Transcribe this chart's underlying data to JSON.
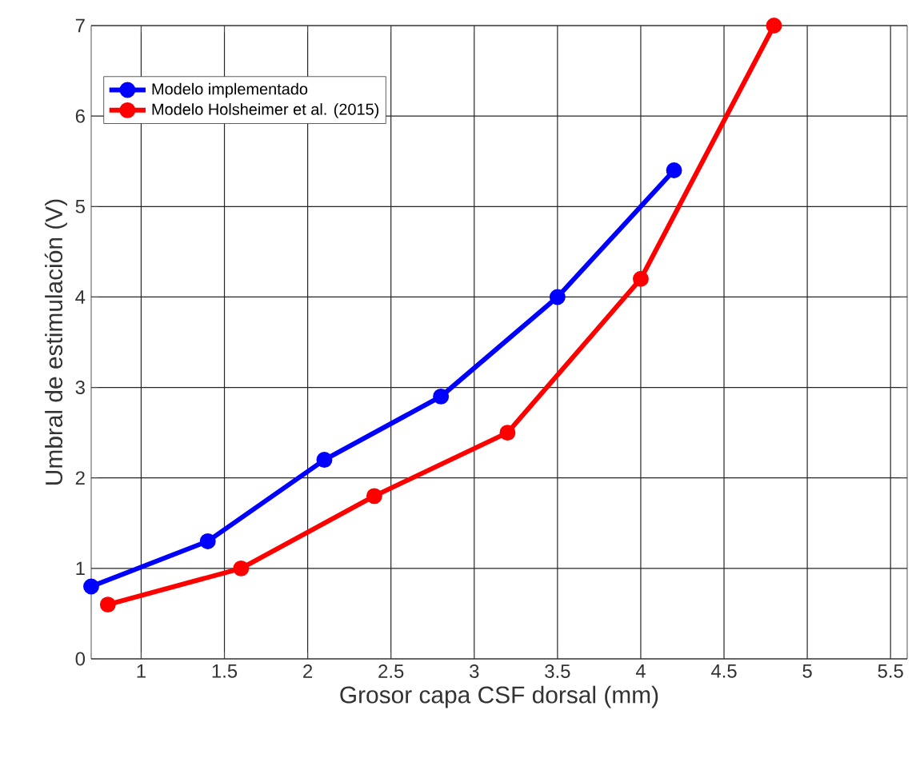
{
  "chart_data": {
    "type": "line",
    "xlabel": "Grosor capa CSF dorsal (mm)",
    "ylabel": "Umbral de estimulación (V)",
    "xlim": [
      0.7,
      5.6
    ],
    "xticks": [
      1,
      1.5,
      2,
      2.5,
      3,
      3.5,
      4,
      4.5,
      5,
      5.5
    ],
    "ylim": [
      0,
      7
    ],
    "yticks": [
      0,
      1,
      2,
      3,
      4,
      5,
      6,
      7
    ],
    "grid": true,
    "legend": "top left",
    "marker": "circle",
    "line_style": "solid",
    "series": [
      {
        "name": "Modelo implementado",
        "color": "#0000ff",
        "x": [
          0.7,
          1.4,
          2.1,
          2.8,
          3.5,
          4.2
        ],
        "values": [
          0.8,
          1.3,
          2.2,
          2.9,
          4.0,
          5.4
        ]
      },
      {
        "name": "Modelo Holsheimer et al. (2015)",
        "color": "#ff0000",
        "x": [
          0.8,
          1.6,
          2.4,
          3.2,
          4.0,
          4.8
        ],
        "values": [
          0.6,
          1.0,
          1.8,
          2.5,
          4.2,
          7.0
        ]
      }
    ]
  }
}
